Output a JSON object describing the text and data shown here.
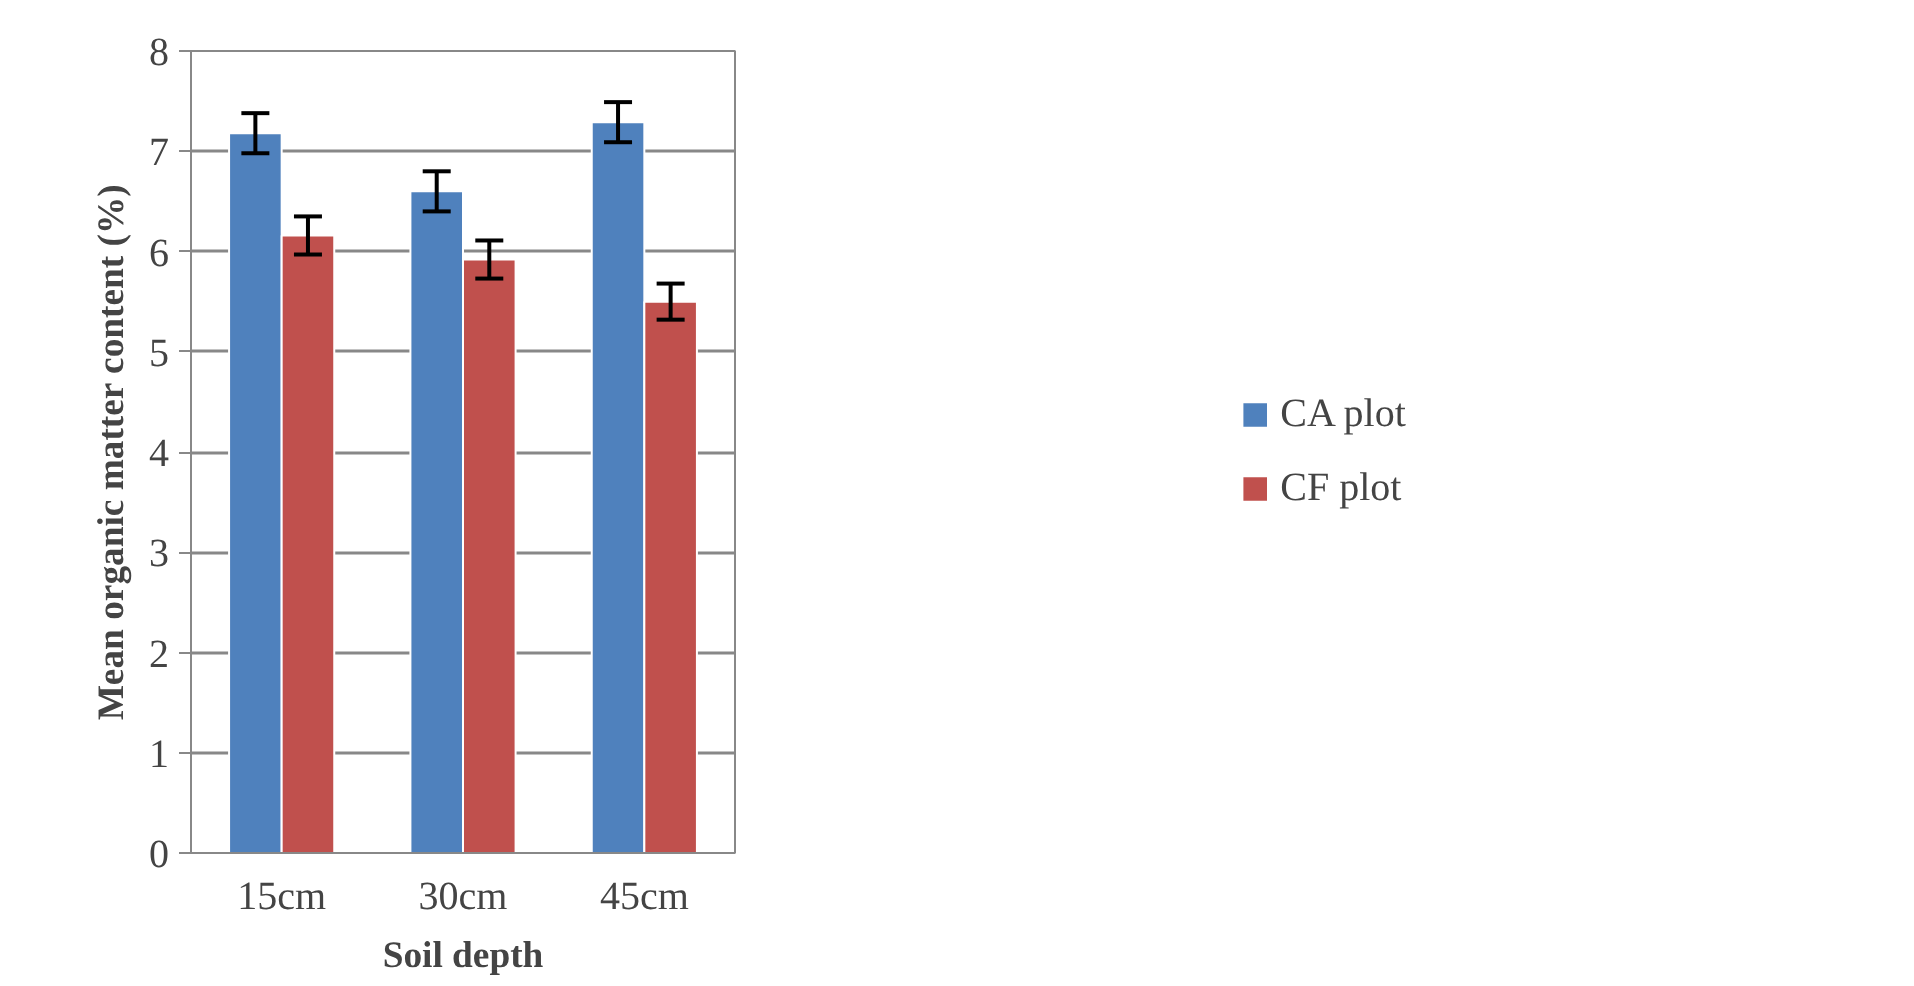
{
  "chart_data": {
    "type": "bar",
    "xlabel": "Soil depth",
    "ylabel": "Mean organic matter content (%)",
    "categories": [
      "15cm",
      "30cm",
      "45cm"
    ],
    "series": [
      {
        "name": "CA plot",
        "color": "#4f81bd",
        "values": [
          7.18,
          6.6,
          7.29
        ],
        "errors": [
          0.2,
          0.2,
          0.2
        ]
      },
      {
        "name": "CF plot",
        "color": "#c0504d",
        "values": [
          6.16,
          5.92,
          5.5
        ],
        "errors": [
          0.19,
          0.19,
          0.18
        ]
      }
    ],
    "ylim": [
      0,
      8
    ],
    "yticks": [
      0,
      1,
      2,
      3,
      4,
      5,
      6,
      7,
      8
    ],
    "grid": "y",
    "legend": "right"
  }
}
